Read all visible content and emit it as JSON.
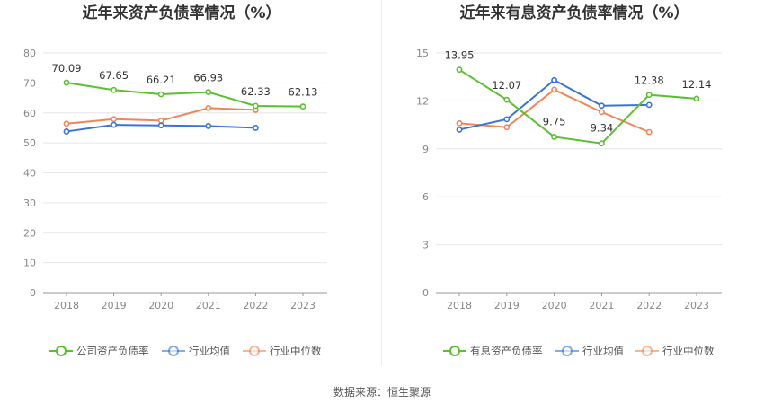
{
  "source_text": "数据来源：恒生聚源",
  "chart_data": [
    {
      "type": "line",
      "title": "近年来资产负债率情况（%）",
      "x": [
        "2018",
        "2019",
        "2020",
        "2021",
        "2022",
        "2023"
      ],
      "ylim": [
        0,
        80
      ],
      "yticks": [
        0,
        10,
        20,
        30,
        40,
        50,
        60,
        70,
        80
      ],
      "grid": true,
      "legend_position": "bottom",
      "series": [
        {
          "name": "公司资产负债率",
          "color": "#5cbf31",
          "values": [
            70.09,
            67.65,
            66.21,
            66.93,
            62.33,
            62.13
          ],
          "labels": [
            "70.09",
            "67.65",
            "66.21",
            "66.93",
            "62.33",
            "62.13"
          ]
        },
        {
          "name": "行业均值",
          "color": "#3a75d4",
          "values": [
            53.8,
            56.0,
            55.8,
            55.6,
            55.0,
            null
          ],
          "labels": null
        },
        {
          "name": "行业中位数",
          "color": "#f0855a",
          "values": [
            56.4,
            57.9,
            57.4,
            61.6,
            61.0,
            null
          ],
          "labels": null
        }
      ]
    },
    {
      "type": "line",
      "title": "近年来有息资产负债率情况（%）",
      "x": [
        "2018",
        "2019",
        "2020",
        "2021",
        "2022",
        "2023"
      ],
      "ylim": [
        0,
        15
      ],
      "yticks": [
        0,
        3,
        6,
        9,
        12,
        15
      ],
      "grid": true,
      "legend_position": "bottom",
      "series": [
        {
          "name": "有息资产负债率",
          "color": "#5cbf31",
          "values": [
            13.95,
            12.07,
            9.75,
            9.34,
            12.38,
            12.14
          ],
          "labels": [
            "13.95",
            "12.07",
            "9.75",
            "9.34",
            "12.38",
            "12.14"
          ]
        },
        {
          "name": "行业均值",
          "color": "#3a75d4",
          "values": [
            10.2,
            10.85,
            13.3,
            11.7,
            11.75,
            null
          ],
          "labels": null
        },
        {
          "name": "行业中位数",
          "color": "#f0855a",
          "values": [
            10.6,
            10.35,
            12.7,
            11.3,
            10.05,
            null
          ],
          "labels": null
        }
      ]
    }
  ]
}
